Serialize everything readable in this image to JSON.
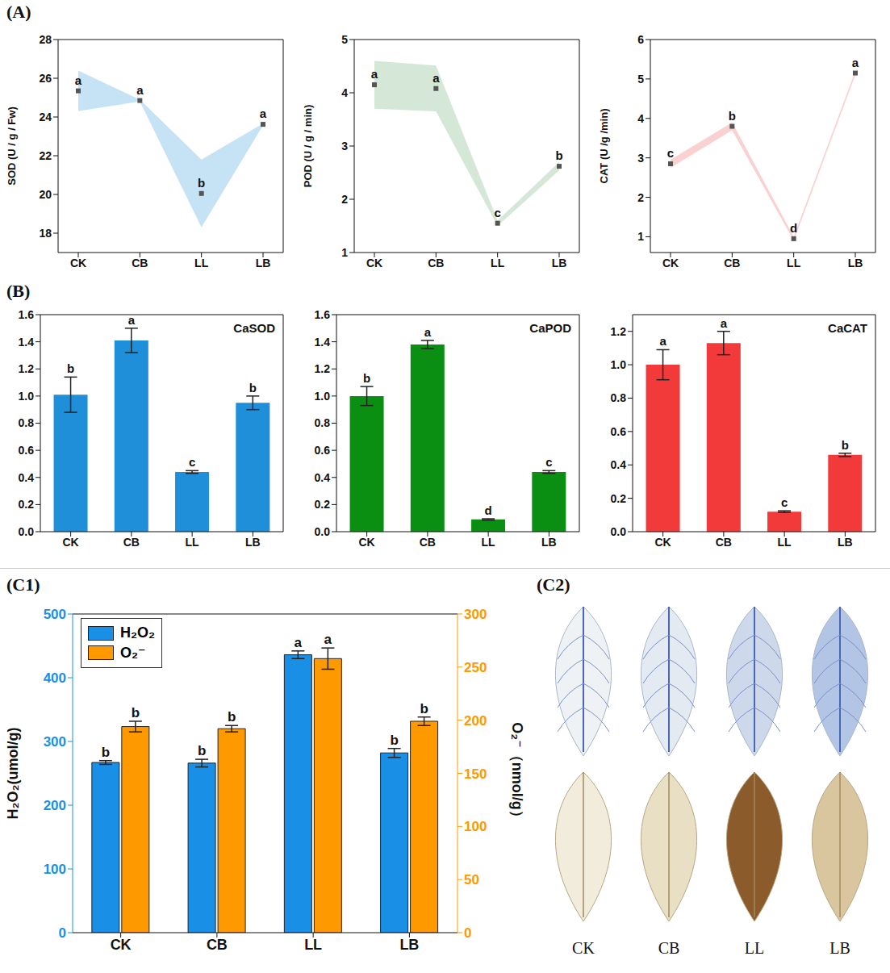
{
  "chart_data": [
    {
      "panel": "(A)",
      "type": "scatter",
      "categories": [
        "CK",
        "CB",
        "LL",
        "LB"
      ],
      "y_label": "SOD (U / g / Fw)",
      "ylim": [
        17,
        28
      ],
      "yticks": [
        18,
        20,
        22,
        24,
        26,
        28
      ],
      "series": [
        {
          "color": "#9fd0ef",
          "marker": "square",
          "values": [
            25.35,
            24.85,
            20.05,
            23.62
          ],
          "errors": [
            1.05,
            0.05,
            1.75,
            0.05
          ],
          "annotations": [
            "a",
            "a",
            "b",
            "a"
          ]
        }
      ]
    },
    {
      "panel": "(A)",
      "type": "scatter",
      "categories": [
        "CK",
        "CB",
        "LL",
        "LB"
      ],
      "y_label": "POD (U / g / min)",
      "ylim": [
        1,
        5
      ],
      "yticks": [
        1,
        2,
        3,
        4,
        5
      ],
      "series": [
        {
          "color": "#b9d9bc",
          "marker": "square",
          "values": [
            4.15,
            4.08,
            1.55,
            2.62
          ],
          "errors": [
            0.45,
            0.43,
            0.05,
            0.08
          ],
          "annotations": [
            "a",
            "a",
            "c",
            "b"
          ]
        }
      ]
    },
    {
      "panel": "(A)",
      "type": "scatter",
      "categories": [
        "CK",
        "CB",
        "LL",
        "LB"
      ],
      "y_label": "CAT (U /g /min)",
      "ylim": [
        0.6,
        6
      ],
      "yticks": [
        1,
        2,
        3,
        4,
        5,
        6
      ],
      "series": [
        {
          "color": "#f6b3b3",
          "marker": "square",
          "values": [
            2.85,
            3.8,
            0.95,
            5.15
          ],
          "errors": [
            0.1,
            0.1,
            0.05,
            0.05
          ],
          "annotations": [
            "c",
            "b",
            "d",
            "a"
          ]
        }
      ]
    },
    {
      "panel": "(B)",
      "type": "bar",
      "title": "CaSOD",
      "categories": [
        "CK",
        "CB",
        "LL",
        "LB"
      ],
      "ylim": [
        0,
        1.6
      ],
      "yticks": [
        {
          "value": 0,
          "label": "0.0"
        },
        0.2,
        0.4,
        0.6,
        0.8,
        {
          "value": 1,
          "label": "1.0"
        },
        1.2,
        1.4,
        1.6
      ],
      "series": [
        {
          "color": "#1e8fd8",
          "values": [
            1.01,
            1.41,
            0.44,
            0.95
          ],
          "errors": [
            0.13,
            0.09,
            0.01,
            0.05
          ],
          "annotations": [
            "b",
            "a",
            "c",
            "b"
          ]
        }
      ]
    },
    {
      "panel": "(B)",
      "type": "bar",
      "title": "CaPOD",
      "categories": [
        "CK",
        "CB",
        "LL",
        "LB"
      ],
      "ylim": [
        0,
        1.6
      ],
      "yticks": [
        {
          "value": 0,
          "label": "0.0"
        },
        0.2,
        0.4,
        0.6,
        0.8,
        {
          "value": 1,
          "label": "1.0"
        },
        1.2,
        1.4,
        1.6
      ],
      "series": [
        {
          "color": "#0a8f12",
          "values": [
            1.0,
            1.38,
            0.09,
            0.44
          ],
          "errors": [
            0.07,
            0.03,
            0.005,
            0.01
          ],
          "annotations": [
            "b",
            "a",
            "d",
            "c"
          ]
        }
      ]
    },
    {
      "panel": "(B)",
      "type": "bar",
      "title": "CaCAT",
      "categories": [
        "CK",
        "CB",
        "LL",
        "LB"
      ],
      "ylim": [
        0,
        1.3
      ],
      "yticks": [
        {
          "value": 0,
          "label": "0.0"
        },
        0.2,
        0.4,
        0.6,
        0.8,
        {
          "value": 1,
          "label": "1.0"
        },
        1.2
      ],
      "series": [
        {
          "color": "#f23a3a",
          "values": [
            1.0,
            1.13,
            0.12,
            0.46
          ],
          "errors": [
            0.09,
            0.07,
            0.005,
            0.01
          ],
          "annotations": [
            "a",
            "a",
            "c",
            "b"
          ]
        }
      ]
    },
    {
      "panel": "(C1)",
      "type": "bar",
      "categories": [
        "CK",
        "CB",
        "LL",
        "LB"
      ],
      "legend": "top-left",
      "y_label": "H₂O₂(umol/g)",
      "y2_label": "O₂⁻（nmol/g）",
      "ylim": [
        0,
        500
      ],
      "yticks": [
        0,
        100,
        200,
        300,
        400,
        500
      ],
      "y2lim": [
        0,
        300
      ],
      "y2ticks": [
        0,
        50,
        100,
        150,
        200,
        250,
        300
      ],
      "series": [
        {
          "name": "H₂O₂",
          "color": "#1a8fe6",
          "values": [
            267,
            266,
            436,
            282
          ],
          "errors": [
            3,
            6,
            6,
            7
          ],
          "annotations": [
            "b",
            "b",
            "a",
            "b"
          ]
        },
        {
          "name": "O₂⁻",
          "axis": "y2",
          "color": "#ff9900",
          "values": [
            194,
            192,
            258,
            199
          ],
          "errors": [
            5,
            3,
            10,
            4
          ],
          "annotations": [
            "b",
            "b",
            "a",
            "b"
          ]
        }
      ]
    }
  ],
  "images": {
    "panel": "(C2)",
    "labels": [
      "CK",
      "CB",
      "LL",
      "LB"
    ]
  }
}
